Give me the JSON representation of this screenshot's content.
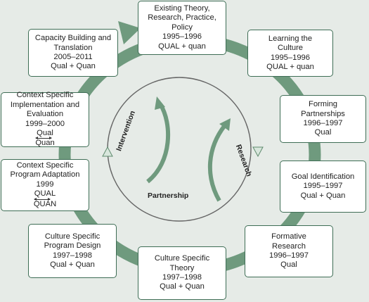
{
  "colors": {
    "background": "#e6ebe7",
    "ring": "#6f9a7e",
    "border": "#3e6d55",
    "inner_arrow": "#6f9a7e",
    "triangle": "#d8e6dc"
  },
  "boxes": [
    {
      "id": "existing-theory",
      "lines": [
        "Existing Theory,",
        "Research, Practice,",
        "Policy",
        "1995–1996",
        "QUAL + quan"
      ]
    },
    {
      "id": "learning-culture",
      "lines": [
        "Learning the",
        "Culture",
        "1995–1996",
        "QUAL + quan"
      ]
    },
    {
      "id": "forming-partnerships",
      "lines": [
        "Forming",
        "Partnerships",
        "1996–1997",
        "Qual"
      ]
    },
    {
      "id": "goal-identification",
      "lines": [
        "Goal Identification",
        "1995–1997",
        "Qual + Quan"
      ]
    },
    {
      "id": "formative-research",
      "lines": [
        "Formative",
        "Research",
        "1996–1997",
        "Qual"
      ]
    },
    {
      "id": "culture-specific-theory",
      "lines": [
        "Culture Specific",
        "Theory",
        "1997–1998",
        "Qual + Quan"
      ]
    },
    {
      "id": "culture-specific-program-design",
      "lines": [
        "Culture Specific",
        "Program Design",
        "1997–1998",
        "Qual + Quan"
      ]
    },
    {
      "id": "context-specific-program-adaptation",
      "lines": [
        "Context Specific",
        "Program Adaptation",
        "1999"
      ],
      "bi": [
        "QUAL",
        "QUAN"
      ]
    },
    {
      "id": "context-specific-implementation",
      "lines": [
        "Context Specific",
        "Implementation and",
        "Evaluation",
        "1999–2000"
      ],
      "bi": [
        "Qual",
        "Quan"
      ]
    },
    {
      "id": "capacity-building",
      "lines": [
        "Capacity Building and",
        "Translation",
        "2005–2011",
        "Qual + Quan"
      ]
    }
  ],
  "inner": {
    "intervention": "Intervention",
    "research": "Research",
    "partnership": "Partnership"
  }
}
